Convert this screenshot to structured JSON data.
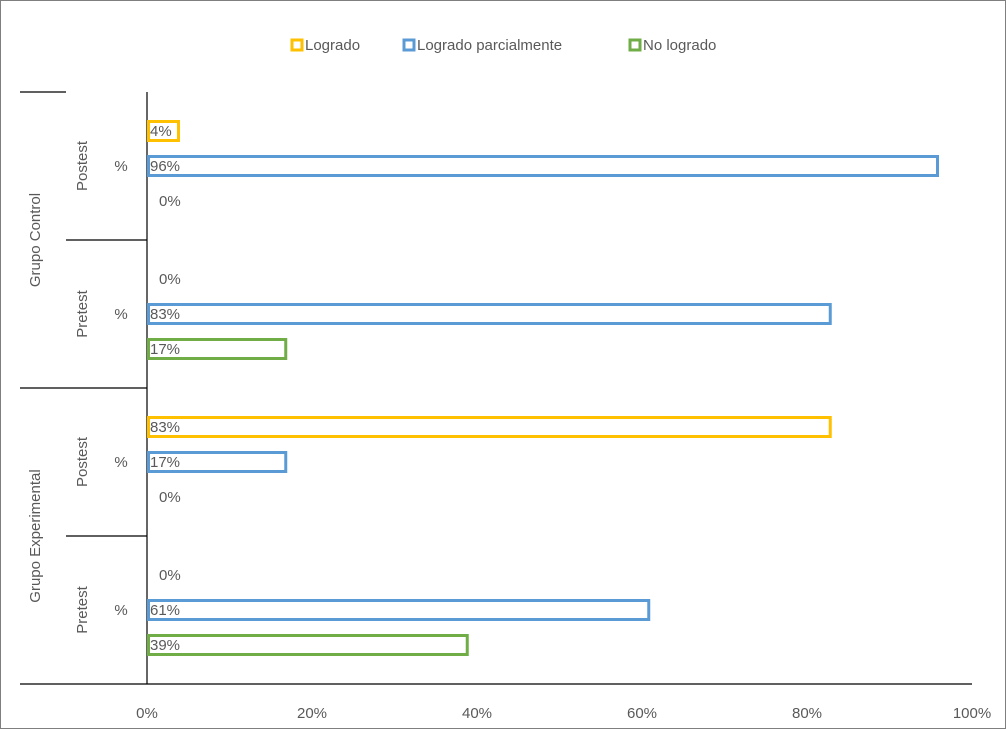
{
  "chart_data": {
    "type": "bar",
    "orientation": "horizontal",
    "title": "",
    "xlim": [
      0,
      100
    ],
    "x_tick_labels": [
      "0%",
      "20%",
      "40%",
      "60%",
      "80%",
      "100%"
    ],
    "legend": {
      "position": "top",
      "items": [
        {
          "name": "Logrado",
          "color": "#FFC000"
        },
        {
          "name": "Logrado parcialmente",
          "color": "#5B9BD5"
        },
        {
          "name": "No logrado",
          "color": "#70AD47"
        }
      ]
    },
    "groups": [
      {
        "name": "Grupo Control",
        "subgroups": [
          {
            "name": "Postest",
            "measure": "%",
            "values": [
              4,
              96,
              0
            ],
            "labels": [
              "4%",
              "96%",
              "0%"
            ]
          },
          {
            "name": "Pretest",
            "measure": "%",
            "values": [
              0,
              83,
              17
            ],
            "labels": [
              "0%",
              "83%",
              "17%"
            ]
          }
        ]
      },
      {
        "name": "Grupo Experimental",
        "subgroups": [
          {
            "name": "Postest",
            "measure": "%",
            "values": [
              83,
              17,
              0
            ],
            "labels": [
              "83%",
              "17%",
              "0%"
            ]
          },
          {
            "name": "Pretest",
            "measure": "%",
            "values": [
              0,
              61,
              39
            ],
            "labels": [
              "0%",
              "61%",
              "39%"
            ]
          }
        ]
      }
    ]
  }
}
